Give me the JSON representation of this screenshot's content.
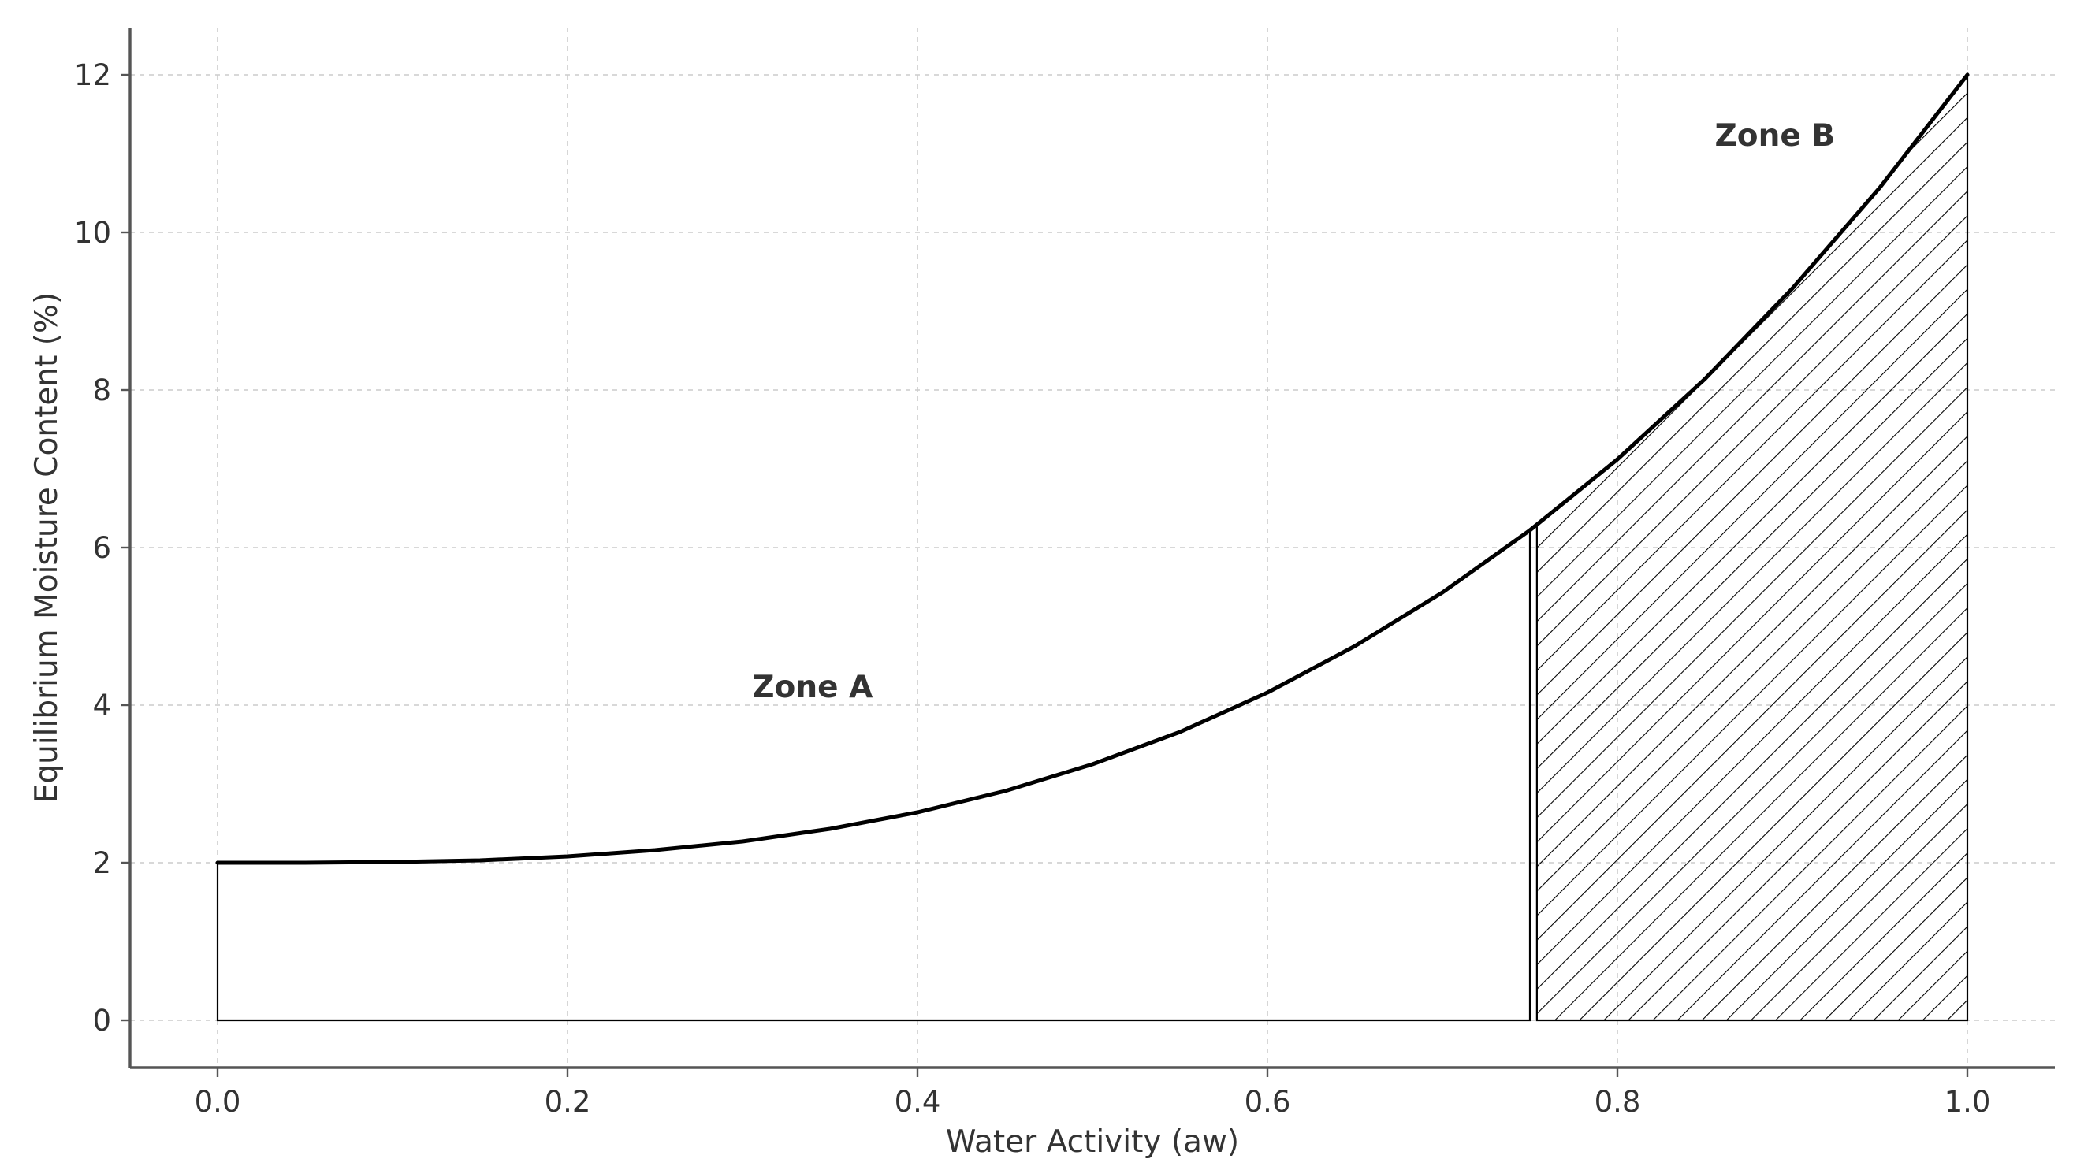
{
  "chart_data": {
    "type": "line",
    "title": "",
    "xlabel": "Water Activity (aw)",
    "ylabel": "Equilibrium Moisture Content (%)",
    "xlim": [
      -0.05,
      1.05
    ],
    "ylim": [
      -0.6,
      12.6
    ],
    "grid": true,
    "x_ticks": [
      0.0,
      0.2,
      0.4,
      0.6,
      0.8,
      1.0
    ],
    "x_tick_labels": [
      "0.0",
      "0.2",
      "0.4",
      "0.6",
      "0.8",
      "1.0"
    ],
    "y_ticks": [
      0,
      2,
      4,
      6,
      8,
      10,
      12
    ],
    "y_tick_labels": [
      "0",
      "2",
      "4",
      "6",
      "8",
      "10",
      "12"
    ],
    "series": [
      {
        "x": [
          0.0,
          0.05,
          0.1,
          0.15,
          0.2,
          0.25,
          0.3,
          0.35,
          0.4,
          0.45,
          0.5,
          0.55,
          0.6,
          0.65,
          0.7,
          0.75,
          0.8,
          0.85,
          0.9,
          0.95,
          1.0
        ],
        "values": [
          2.0,
          2.0,
          2.01,
          2.03,
          2.08,
          2.16,
          2.27,
          2.43,
          2.64,
          2.91,
          3.25,
          3.66,
          4.16,
          4.75,
          5.43,
          6.22,
          7.12,
          8.14,
          9.29,
          10.57,
          12.0
        ],
        "color": "#000000"
      }
    ],
    "regions": [
      {
        "x_range": [
          0.0,
          0.75
        ],
        "fill": "none",
        "outline_color": "#000000"
      },
      {
        "x_range": [
          0.75,
          1.0
        ],
        "fill": "hatch",
        "outline_color": "#000000"
      }
    ],
    "annotations": [
      {
        "text": "Zone A",
        "x": 0.34,
        "y": 4.1
      },
      {
        "text": "Zone B",
        "x": 0.89,
        "y": 11.1
      }
    ]
  }
}
